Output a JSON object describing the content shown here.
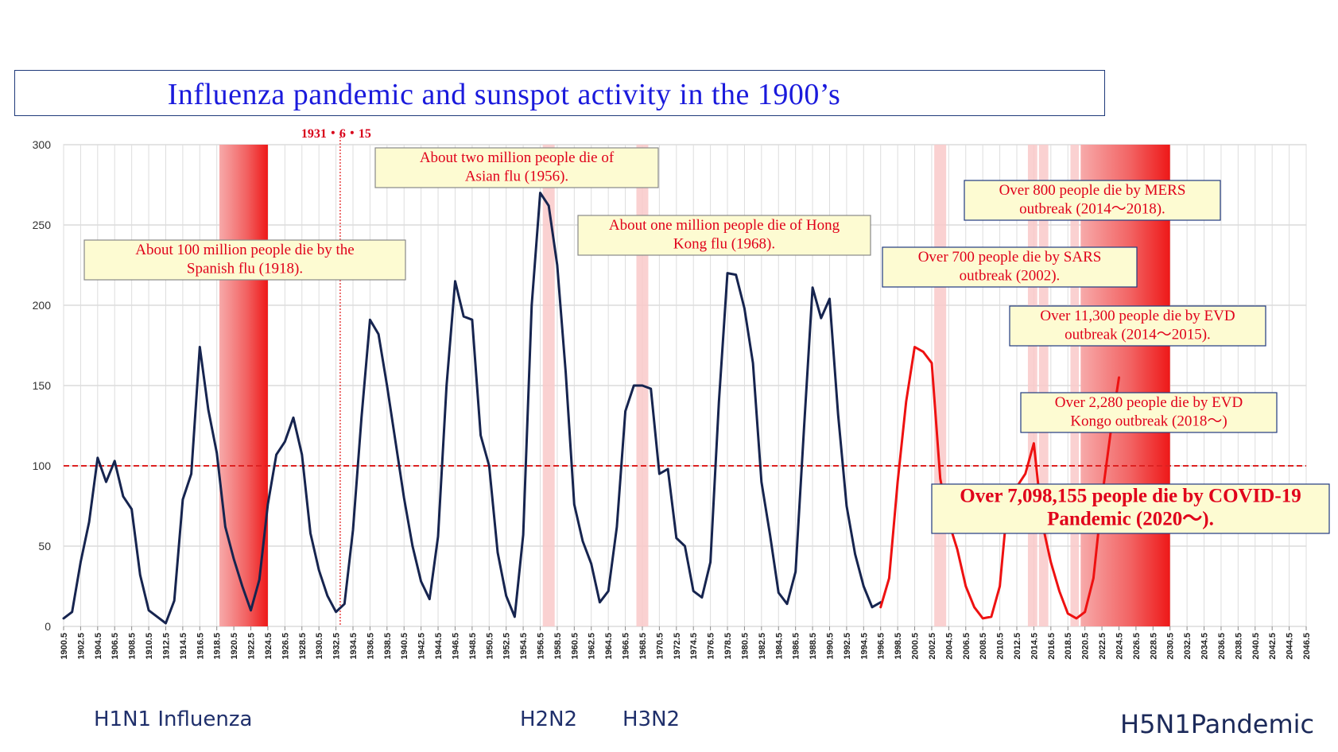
{
  "title": "Influenza pandemic and sunspot activity in the 1900’s",
  "strains": {
    "h1n1": "H1N1 Influenza",
    "h2n2": "H2N2",
    "h3n2": "H3N2",
    "h5n1": "H5N1Pandemic"
  },
  "chart_data": {
    "type": "line",
    "ylim": [
      0,
      300
    ],
    "yticks": [
      0,
      50,
      100,
      150,
      200,
      250,
      300
    ],
    "xlim": [
      1900.5,
      2046.5
    ],
    "xticks_step": 2,
    "threshold_y": 100,
    "marker_date_label": "1931・6・15",
    "marker_x": 1933.0,
    "colors": {
      "history_line": "#16244f",
      "recent_line": "#ee1111",
      "threshold": "#dd2222",
      "grid": "#c8c8c8"
    },
    "series": [
      {
        "color": "#16244f",
        "x": [
          1900.5,
          1901.5,
          1902.5,
          1903.5,
          1904.5,
          1905.5,
          1906.5,
          1907.5,
          1908.5,
          1909.5,
          1910.5,
          1911.5,
          1912.5,
          1913.5,
          1914.5,
          1915.5,
          1916.5,
          1917.5,
          1918.5,
          1919.5,
          1920.5,
          1921.5,
          1922.5,
          1923.5,
          1924.5,
          1925.5,
          1926.5,
          1927.5,
          1928.5,
          1929.5,
          1930.5,
          1931.5,
          1932.5,
          1933.5,
          1934.5,
          1935.5,
          1936.5,
          1937.5,
          1938.5,
          1939.5,
          1940.5,
          1941.5,
          1942.5,
          1943.5,
          1944.5,
          1945.5,
          1946.5,
          1947.5,
          1948.5,
          1949.5,
          1950.5,
          1951.5,
          1952.5,
          1953.5,
          1954.5,
          1955.5,
          1956.5,
          1957.5,
          1958.5,
          1959.5,
          1960.5,
          1961.5,
          1962.5,
          1963.5,
          1964.5,
          1965.5,
          1966.5,
          1967.5,
          1968.5,
          1969.5,
          1970.5,
          1971.5,
          1972.5,
          1973.5,
          1974.5,
          1975.5,
          1976.5,
          1977.5,
          1978.5,
          1979.5,
          1980.5,
          1981.5,
          1982.5,
          1983.5,
          1984.5,
          1985.5,
          1986.5,
          1987.5,
          1988.5,
          1989.5,
          1990.5,
          1991.5,
          1992.5,
          1993.5,
          1994.5,
          1995.5,
          1996.5
        ],
        "y": [
          5,
          9,
          40,
          65,
          105,
          90,
          103,
          81,
          73,
          32,
          10,
          6,
          2,
          16,
          79,
          95,
          174,
          135,
          108,
          62,
          42,
          25,
          10,
          29,
          76,
          107,
          115,
          130,
          107,
          58,
          35,
          19,
          9,
          14,
          60,
          130,
          191,
          182,
          150,
          115,
          80,
          50,
          28,
          17,
          56,
          150,
          215,
          193,
          191,
          119,
          100,
          46,
          19,
          6,
          57,
          200,
          270,
          262,
          225,
          158,
          76,
          53,
          39,
          15,
          22,
          62,
          134,
          150,
          150,
          148,
          95,
          98,
          55,
          50,
          22,
          18,
          40,
          140,
          220,
          219,
          198,
          164,
          90,
          57,
          21,
          14,
          34,
          124,
          211,
          192,
          204,
          132,
          75,
          45,
          25,
          12,
          15
        ]
      },
      {
        "color": "#ee1111",
        "x": [
          1996.5,
          1997.5,
          1998.5,
          1999.5,
          2000.5,
          2001.5,
          2002.5,
          2003.5,
          2004.5,
          2005.5,
          2006.5,
          2007.5,
          2008.5,
          2009.5,
          2010.5,
          2011.5,
          2012.5,
          2013.5,
          2014.5,
          2015.5,
          2016.5,
          2017.5,
          2018.5,
          2019.5,
          2020.5,
          2021.5,
          2022.5,
          2023.5,
          2024.5
        ],
        "y": [
          12,
          30,
          90,
          140,
          174,
          171,
          164,
          92,
          65,
          48,
          25,
          12,
          5,
          6,
          25,
          82,
          87,
          95,
          114,
          64,
          40,
          22,
          8,
          5,
          9,
          30,
          80,
          120,
          155
        ]
      }
    ],
    "shaded_bands": [
      {
        "from": 1918.8,
        "to": 1924.5,
        "style": "gradient"
      },
      {
        "from": 1956.8,
        "to": 1958.2,
        "style": "light"
      },
      {
        "from": 1967.8,
        "to": 1969.2,
        "style": "light"
      },
      {
        "from": 2002.8,
        "to": 2004.2,
        "style": "light"
      },
      {
        "from": 2013.8,
        "to": 2014.9,
        "style": "light"
      },
      {
        "from": 2015.1,
        "to": 2016.2,
        "style": "light"
      },
      {
        "from": 2018.8,
        "to": 2019.8,
        "style": "light"
      },
      {
        "from": 2020.0,
        "to": 2030.5,
        "style": "gradient"
      }
    ],
    "annotations": [
      {
        "id": "spanish",
        "text_lines": [
          "About 100 million people die by the",
          "Spanish flu (1918)."
        ]
      },
      {
        "id": "asian",
        "text_lines": [
          "About two million people die of",
          "Asian flu (1956)."
        ]
      },
      {
        "id": "hongkong",
        "text_lines": [
          "About one million people die of Hong",
          "Kong flu (1968)."
        ]
      },
      {
        "id": "mers",
        "text_lines": [
          "Over 800 people die by MERS",
          "outbreak (2014〜2018)."
        ]
      },
      {
        "id": "sars",
        "text_lines": [
          "Over 700 people die by SARS",
          "outbreak (2002)."
        ]
      },
      {
        "id": "evd2014",
        "text_lines": [
          "Over 11,300 people die by EVD",
          "outbreak (2014〜2015)."
        ]
      },
      {
        "id": "evd2018",
        "text_lines": [
          "Over 2,280 people die by EVD",
          "Kongo outbreak (2018〜)"
        ]
      },
      {
        "id": "covid",
        "text_lines": [
          "Over  7,098,155 people die by COVID-19",
          "Pandemic (2020〜)."
        ]
      }
    ]
  }
}
